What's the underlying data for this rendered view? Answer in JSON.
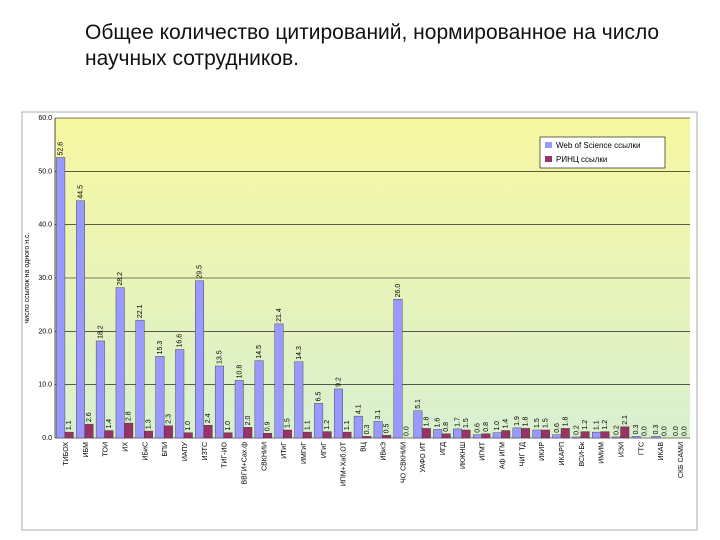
{
  "slide": {
    "title": "Общее количество цитирований, нормированное на число научных сотрудников."
  },
  "colors": {
    "series1": "#9999ff",
    "series2": "#993366",
    "gradient_top": "#f7f7a0",
    "gradient_bottom": "#d9f0d0",
    "gridline": "#000000"
  },
  "chart_data": {
    "type": "bar",
    "title": "",
    "xlabel": "",
    "ylabel": "число ссылок на одного н.с.",
    "ylim": [
      0,
      60
    ],
    "yticks": [
      "0.0",
      "10.0",
      "20.0",
      "30.0",
      "40.0",
      "50.0",
      "60.0"
    ],
    "grid": true,
    "legend_position": "top-right",
    "categories": [
      "ТИБОХ",
      "ИБМ",
      "ТОИ",
      "ИХ",
      "ИБиС",
      "БПИ",
      "ИАПУ",
      "ИЗТС",
      "ТИГ-ИО",
      "ВВГИ+Сах.ф",
      "СВКНИИ",
      "ИТиГ",
      "ИМГиГ",
      "ИГиГ",
      "ИПМ+Хаб.ОТ",
      "ВЦ",
      "ИВиЭ",
      "ЧО СВКНИИ",
      "УАФО ИТ",
      "ИГД",
      "ИКЖНШ",
      "ИГМТ",
      "Аф ИГМ",
      "ЧИГ ТД",
      "ИКИР",
      "ИКАРП",
      "ВСИ-Бк",
      "ИМИМ",
      "ИЭИ",
      "ГТС",
      "ИКАВ",
      "СКБ САМИ"
    ],
    "series": [
      {
        "name": "Web of Science ссылки",
        "values": [
          52.6,
          44.5,
          18.2,
          28.2,
          22.1,
          15.3,
          16.6,
          29.5,
          13.5,
          10.8,
          14.5,
          21.4,
          14.3,
          6.5,
          9.2,
          4.1,
          3.1,
          26.0,
          5.1,
          1.6,
          1.7,
          0.6,
          1.0,
          1.9,
          1.5,
          0.6,
          0.2,
          1.1,
          0.2,
          0.3,
          0.3,
          0.0
        ],
        "value_labels": [
          "52.6",
          "44.5",
          "18.2",
          "28.2",
          "22.1",
          "15.3",
          "16.6",
          "29.5",
          "13.5",
          "10.8",
          "14.5",
          "21.4",
          "14.3",
          "6.5",
          "9.2",
          "4.1",
          "3.1",
          "26.0",
          "5.1",
          "1.6",
          "1.7",
          "0.6",
          "1.0",
          "1.9",
          "1.5",
          "0.6",
          "0.2",
          "1.1",
          "0.2",
          "0.3",
          "0.3",
          "0.0"
        ]
      },
      {
        "name": "РИНЦ ссылки",
        "values": [
          1.1,
          2.6,
          1.4,
          2.8,
          1.3,
          2.3,
          1.0,
          2.4,
          1.0,
          2.0,
          0.9,
          1.5,
          1.1,
          1.2,
          1.1,
          0.3,
          0.5,
          0.0,
          1.8,
          0.8,
          1.5,
          0.8,
          1.4,
          1.8,
          1.5,
          1.8,
          1.2,
          1.2,
          2.1,
          0.0,
          0.0,
          0.0
        ],
        "value_labels": [
          "1.1",
          "2.6",
          "1.4",
          "2.8",
          "1.3",
          "2.3",
          "1.0",
          "2.4",
          "1.0",
          "2.0",
          "0.9",
          "1.5",
          "1.1",
          "1.2",
          "1.1",
          "0.3",
          "0.5",
          "0.0",
          "1.8",
          "0.8",
          "1.5",
          "0.8",
          "1.4",
          "1.8",
          "1.5",
          "1.8",
          "1.2",
          "1.2",
          "2.1",
          "0.0",
          "0.0",
          "0.0"
        ]
      }
    ]
  }
}
